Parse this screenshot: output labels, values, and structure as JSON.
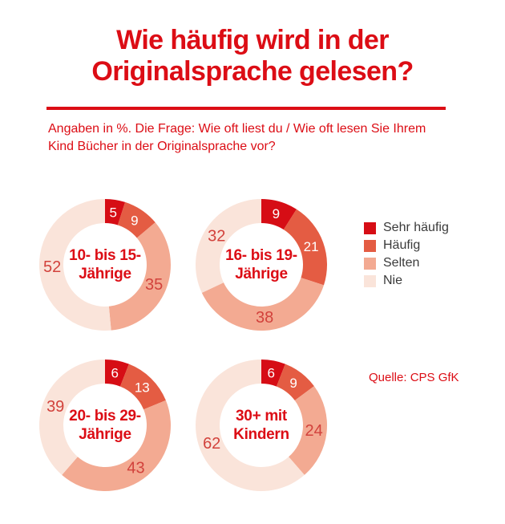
{
  "page": {
    "title_line1": "Wie häufig wird in der",
    "title_line2": "Originalsprache gelesen?",
    "subtitle_line1": "Angaben in %. Die Frage: Wie oft liest du / Wie oft lesen Sie Ihrem",
    "subtitle_line2": "Kind Bücher in der Originalsprache vor?",
    "source": "Quelle: CPS GfK"
  },
  "colors": {
    "brand_red": "#dc0d15",
    "number_label_red": "#d2423c",
    "legend_text_gray": "#3a3a3a",
    "background": "#ffffff"
  },
  "chart_data": {
    "type": "pie",
    "variant": "donut",
    "unit": "%",
    "start_angle_deg": 0,
    "direction": "clockwise",
    "legend_position": "right",
    "categories": [
      "Sehr häufig",
      "Häufig",
      "Selten",
      "Nie"
    ],
    "segment_colors": [
      "#d60d15",
      "#e45c43",
      "#f3aa92",
      "#fae4da"
    ],
    "charts": [
      {
        "title_line1": "10- bis 15-",
        "title_line2": "Jährige",
        "values": [
          5,
          9,
          35,
          52
        ]
      },
      {
        "title_line1": "16- bis 19-",
        "title_line2": "Jährige",
        "values": [
          9,
          21,
          38,
          32
        ]
      },
      {
        "title_line1": "20- bis 29-",
        "title_line2": "Jährige",
        "values": [
          6,
          13,
          43,
          39
        ]
      },
      {
        "title_line1": "30+ mit",
        "title_line2": "Kindern",
        "values": [
          6,
          9,
          24,
          62
        ]
      }
    ]
  }
}
